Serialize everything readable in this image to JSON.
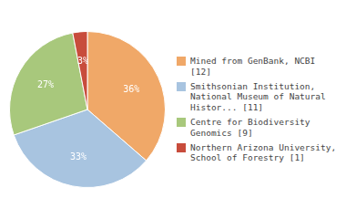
{
  "chart_data": {
    "type": "pie",
    "categories": [
      "Mined from GenBank, NCBI [12]",
      "Smithsonian Institution,\nNational Museum of Natural\nHistor... [11]",
      "Centre for Biodiversity\nGenomics [9]",
      "Northern Arizona University,\nSchool of Forestry [1]"
    ],
    "values": [
      36,
      33,
      27,
      3
    ],
    "value_labels": [
      "36%",
      "33%",
      "27%",
      "3%"
    ],
    "colors": [
      "#f0a868",
      "#a8c4e0",
      "#a8c87c",
      "#c84c3c"
    ],
    "data_labels": true,
    "legend": "right"
  }
}
